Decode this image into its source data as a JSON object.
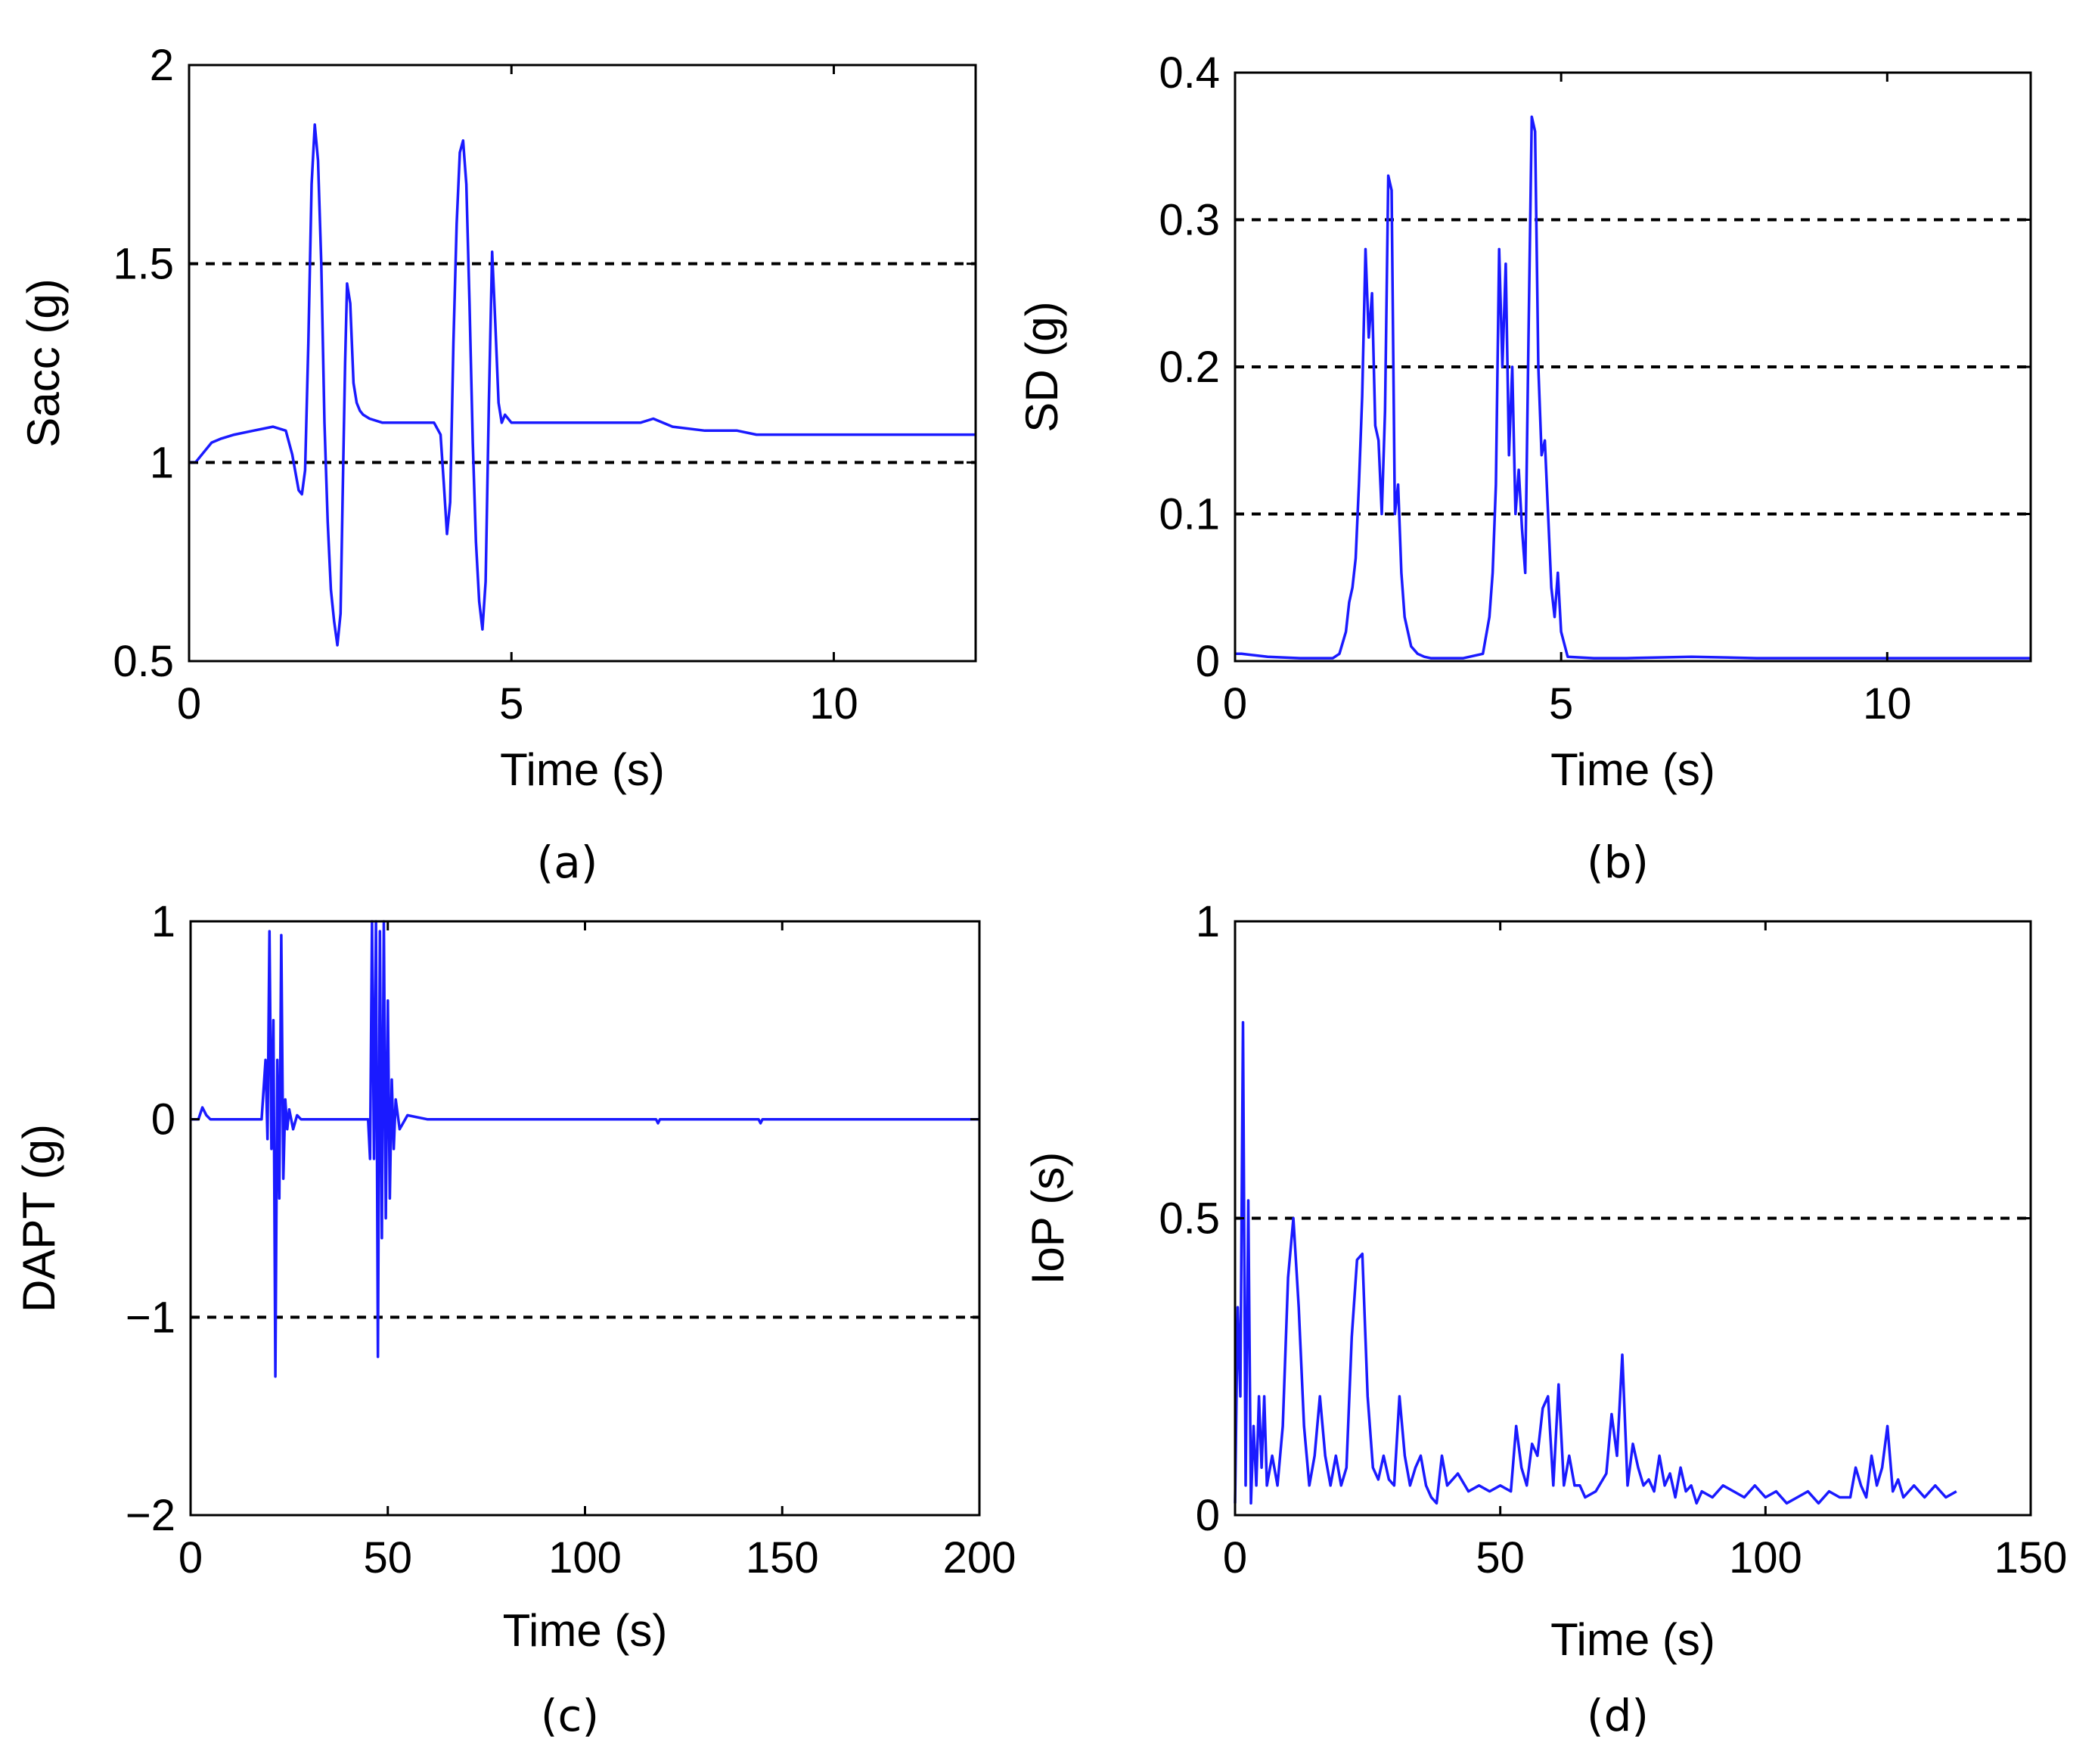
{
  "colors": {
    "series": "#1a1aff",
    "axis": "#000000",
    "background": "#ffffff"
  },
  "chart_data": [
    {
      "type": "line",
      "caption": "(a)",
      "title": "",
      "xlabel": "Time (s)",
      "ylabel": "Sacc (g)",
      "xlim": [
        0,
        12.2
      ],
      "ylim": [
        0.5,
        2
      ],
      "xticks": [
        0,
        5,
        10
      ],
      "xtick_labels": [
        "0",
        "5",
        "10"
      ],
      "yticks": [
        0.5,
        1,
        1.5,
        2
      ],
      "ytick_labels": [
        "0.5",
        "1",
        "1.5",
        "2"
      ],
      "grid": false,
      "reference_lines": [
        1,
        1.5
      ],
      "series": [
        {
          "name": "Sacc",
          "x": [
            0,
            0.1,
            0.2,
            0.35,
            0.5,
            0.7,
            1.0,
            1.3,
            1.5,
            1.6,
            1.7,
            1.75,
            1.8,
            1.85,
            1.9,
            1.95,
            2.0,
            2.05,
            2.1,
            2.15,
            2.2,
            2.25,
            2.3,
            2.35,
            2.38,
            2.42,
            2.45,
            2.5,
            2.55,
            2.6,
            2.65,
            2.7,
            2.8,
            3.0,
            3.5,
            3.8,
            3.9,
            3.95,
            4.0,
            4.05,
            4.1,
            4.15,
            4.2,
            4.25,
            4.3,
            4.35,
            4.4,
            4.45,
            4.5,
            4.55,
            4.6,
            4.65,
            4.7,
            4.75,
            4.8,
            4.85,
            4.9,
            5.0,
            5.5,
            6.0,
            6.5,
            7.0,
            7.2,
            7.5,
            8.0,
            8.5,
            8.8,
            9.0,
            10.0,
            11.0,
            12.2
          ],
          "y": [
            1.0,
            1.0,
            1.02,
            1.05,
            1.06,
            1.07,
            1.08,
            1.09,
            1.08,
            1.02,
            0.93,
            0.92,
            0.98,
            1.3,
            1.7,
            1.85,
            1.76,
            1.5,
            1.1,
            0.85,
            0.68,
            0.6,
            0.54,
            0.62,
            0.9,
            1.25,
            1.45,
            1.4,
            1.2,
            1.15,
            1.13,
            1.12,
            1.11,
            1.1,
            1.1,
            1.1,
            1.07,
            0.95,
            0.82,
            0.9,
            1.3,
            1.6,
            1.78,
            1.81,
            1.7,
            1.4,
            1.05,
            0.8,
            0.65,
            0.58,
            0.7,
            1.15,
            1.53,
            1.35,
            1.15,
            1.1,
            1.12,
            1.1,
            1.1,
            1.1,
            1.1,
            1.1,
            1.11,
            1.09,
            1.08,
            1.08,
            1.07,
            1.07,
            1.07,
            1.07,
            1.07
          ]
        }
      ]
    },
    {
      "type": "line",
      "caption": "(b)",
      "title": "",
      "xlabel": "Time (s)",
      "ylabel": "SD (g)",
      "xlim": [
        0,
        12.2
      ],
      "ylim": [
        0,
        0.4
      ],
      "xticks": [
        0,
        5,
        10
      ],
      "xtick_labels": [
        "0",
        "5",
        "10"
      ],
      "yticks": [
        0,
        0.1,
        0.2,
        0.3,
        0.4
      ],
      "ytick_labels": [
        "0",
        "0.1",
        "0.2",
        "0.3",
        "0.4"
      ],
      "grid": false,
      "reference_lines": [
        0.1,
        0.2,
        0.3
      ],
      "series": [
        {
          "name": "SD",
          "x": [
            0,
            0.1,
            0.5,
            1.0,
            1.5,
            1.6,
            1.7,
            1.75,
            1.8,
            1.85,
            1.9,
            1.95,
            2.0,
            2.05,
            2.1,
            2.15,
            2.2,
            2.25,
            2.3,
            2.35,
            2.4,
            2.45,
            2.5,
            2.55,
            2.6,
            2.65,
            2.7,
            2.8,
            2.9,
            3.0,
            3.5,
            3.8,
            3.9,
            3.95,
            4.0,
            4.05,
            4.1,
            4.15,
            4.2,
            4.25,
            4.3,
            4.35,
            4.4,
            4.45,
            4.5,
            4.55,
            4.6,
            4.65,
            4.7,
            4.75,
            4.8,
            4.85,
            4.9,
            4.95,
            5.0,
            5.1,
            5.5,
            6.0,
            7.0,
            8.0,
            10.0,
            12.2
          ],
          "y": [
            0.005,
            0.005,
            0.003,
            0.002,
            0.002,
            0.005,
            0.02,
            0.04,
            0.05,
            0.07,
            0.12,
            0.18,
            0.28,
            0.22,
            0.25,
            0.16,
            0.15,
            0.1,
            0.17,
            0.33,
            0.32,
            0.1,
            0.12,
            0.06,
            0.03,
            0.02,
            0.01,
            0.005,
            0.003,
            0.002,
            0.002,
            0.005,
            0.03,
            0.06,
            0.12,
            0.28,
            0.2,
            0.27,
            0.14,
            0.2,
            0.1,
            0.13,
            0.09,
            0.06,
            0.22,
            0.37,
            0.36,
            0.2,
            0.14,
            0.15,
            0.1,
            0.05,
            0.03,
            0.06,
            0.02,
            0.003,
            0.002,
            0.002,
            0.003,
            0.002,
            0.002,
            0.002
          ]
        }
      ]
    },
    {
      "type": "line",
      "caption": "(c)",
      "title": "",
      "xlabel": "Time (s)",
      "ylabel": "DAPT (g)",
      "xlim": [
        0,
        200
      ],
      "ylim": [
        -2,
        1
      ],
      "xticks": [
        0,
        50,
        100,
        150,
        200
      ],
      "xtick_labels": [
        "0",
        "50",
        "100",
        "150",
        "200"
      ],
      "yticks": [
        -2,
        -1,
        0,
        1
      ],
      "ytick_labels": [
        "−2",
        "−1",
        "0",
        "1"
      ],
      "grid": false,
      "reference_lines": [
        -1
      ],
      "series": [
        {
          "name": "DAPT",
          "x": [
            0,
            2,
            3,
            4,
            5,
            10,
            18,
            19,
            19.5,
            20,
            20.5,
            21,
            21.5,
            22,
            22.5,
            23,
            23.5,
            24,
            24.5,
            25,
            26,
            27,
            28,
            30,
            45,
            45.5,
            46,
            46.5,
            47,
            47.5,
            48,
            48.5,
            49,
            49.5,
            50,
            50.5,
            51,
            51.5,
            52,
            53,
            55,
            60,
            70,
            100,
            118,
            118.5,
            119,
            140,
            144,
            144.5,
            145,
            170,
            200
          ],
          "y": [
            0,
            0,
            0.06,
            0.02,
            0,
            0,
            0,
            0.3,
            -0.1,
            0.95,
            -0.15,
            0.5,
            -1.3,
            0.3,
            -0.4,
            0.93,
            -0.3,
            0.1,
            -0.05,
            0.05,
            -0.05,
            0.02,
            0,
            0,
            0,
            -0.2,
            1.0,
            -0.2,
            1.0,
            -1.2,
            0.95,
            -0.6,
            1.0,
            -0.5,
            0.6,
            -0.4,
            0.2,
            -0.15,
            0.1,
            -0.05,
            0.02,
            0,
            0,
            0,
            0,
            -0.02,
            0,
            0,
            0,
            -0.02,
            0,
            0,
            0
          ]
        }
      ]
    },
    {
      "type": "line",
      "caption": "(d)",
      "title": "",
      "xlabel": "Time (s)",
      "ylabel": "IoP (s)",
      "xlim": [
        0,
        150
      ],
      "ylim": [
        0,
        1
      ],
      "xticks": [
        0,
        50,
        100,
        150
      ],
      "xtick_labels": [
        "0",
        "50",
        "100",
        "150"
      ],
      "yticks": [
        0,
        0.5,
        1
      ],
      "ytick_labels": [
        "0",
        "0.5",
        "1"
      ],
      "grid": false,
      "reference_lines": [
        0.5
      ],
      "series": [
        {
          "name": "IoP",
          "x": [
            0,
            0.5,
            1,
            1.5,
            2,
            2.5,
            3,
            3.5,
            4,
            4.5,
            5,
            5.5,
            6,
            7,
            8,
            9,
            10,
            11,
            12,
            13,
            14,
            15,
            16,
            17,
            18,
            19,
            20,
            21,
            22,
            23,
            24,
            25,
            26,
            27,
            28,
            29,
            30,
            31,
            32,
            33,
            34,
            35,
            36,
            37,
            38,
            39,
            40,
            42,
            44,
            46,
            48,
            50,
            52,
            53,
            54,
            55,
            56,
            57,
            58,
            59,
            60,
            61,
            62,
            63,
            64,
            65,
            66,
            68,
            70,
            71,
            72,
            73,
            74,
            75,
            76,
            77,
            78,
            79,
            80,
            81,
            82,
            83,
            84,
            85,
            86,
            87,
            88,
            90,
            92,
            94,
            96,
            98,
            100,
            102,
            104,
            106,
            108,
            110,
            112,
            114,
            116,
            117,
            118,
            119,
            120,
            121,
            122,
            123,
            124,
            125,
            126,
            128,
            130,
            132,
            134,
            136
          ],
          "y": [
            0.02,
            0.35,
            0.2,
            0.83,
            0.05,
            0.53,
            0.02,
            0.15,
            0.05,
            0.2,
            0.08,
            0.2,
            0.05,
            0.1,
            0.05,
            0.15,
            0.4,
            0.5,
            0.35,
            0.15,
            0.05,
            0.1,
            0.2,
            0.1,
            0.05,
            0.1,
            0.05,
            0.08,
            0.3,
            0.43,
            0.44,
            0.2,
            0.08,
            0.06,
            0.1,
            0.06,
            0.05,
            0.2,
            0.1,
            0.05,
            0.08,
            0.1,
            0.05,
            0.03,
            0.02,
            0.1,
            0.05,
            0.07,
            0.04,
            0.05,
            0.04,
            0.05,
            0.04,
            0.15,
            0.08,
            0.05,
            0.12,
            0.1,
            0.18,
            0.2,
            0.05,
            0.22,
            0.05,
            0.1,
            0.05,
            0.05,
            0.03,
            0.04,
            0.07,
            0.17,
            0.1,
            0.27,
            0.05,
            0.12,
            0.08,
            0.05,
            0.06,
            0.04,
            0.1,
            0.05,
            0.07,
            0.03,
            0.08,
            0.04,
            0.05,
            0.02,
            0.04,
            0.03,
            0.05,
            0.04,
            0.03,
            0.05,
            0.03,
            0.04,
            0.02,
            0.03,
            0.04,
            0.02,
            0.04,
            0.03,
            0.03,
            0.08,
            0.05,
            0.03,
            0.1,
            0.05,
            0.08,
            0.15,
            0.04,
            0.06,
            0.03,
            0.05,
            0.03,
            0.05,
            0.03,
            0.04
          ]
        }
      ]
    }
  ]
}
